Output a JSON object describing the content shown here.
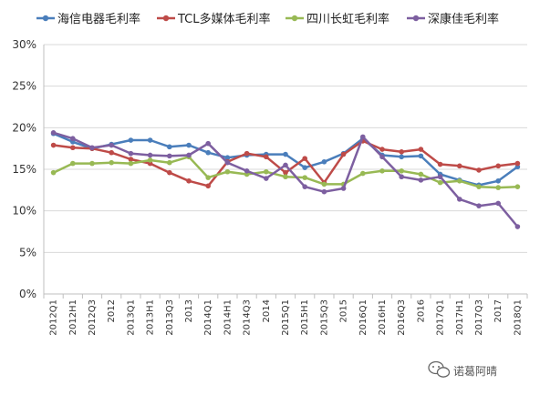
{
  "chart_data": {
    "type": "line",
    "grid": true,
    "legend_position": "top",
    "ylim": [
      0,
      30
    ],
    "y_ticks": [
      0,
      5,
      10,
      15,
      20,
      25,
      30
    ],
    "y_tick_labels": [
      "0%",
      "5%",
      "10%",
      "15%",
      "20%",
      "25%",
      "30%"
    ],
    "categories": [
      "2012Q1",
      "2012H1",
      "2012Q3",
      "2012",
      "2013Q1",
      "2013H1",
      "2013Q3",
      "2013",
      "2014Q1",
      "2014H1",
      "2014Q3",
      "2014",
      "2015Q1",
      "2015H1",
      "2015Q3",
      "2015",
      "2016Q1",
      "2016H1",
      "2016Q3",
      "2016",
      "2017Q1",
      "2017H1",
      "2017Q3",
      "2017",
      "2018Q1"
    ],
    "series": [
      {
        "name": "海信电器毛利率",
        "color": "#4a7ebb",
        "values": [
          19.3,
          18.3,
          17.5,
          18.0,
          18.5,
          18.5,
          17.7,
          17.9,
          17.0,
          16.4,
          16.7,
          16.8,
          16.8,
          15.2,
          15.9,
          16.9,
          18.7,
          16.7,
          16.5,
          16.6,
          14.4,
          13.7,
          13.1,
          13.6,
          15.3
        ]
      },
      {
        "name": "TCL多媒体毛利率",
        "color": "#be4b48",
        "values": [
          17.9,
          17.6,
          17.5,
          17.0,
          16.2,
          15.7,
          14.6,
          13.6,
          13.0,
          15.9,
          16.9,
          16.5,
          14.6,
          16.3,
          13.4,
          16.8,
          18.4,
          17.4,
          17.1,
          17.4,
          15.6,
          15.4,
          14.9,
          15.4,
          15.7
        ]
      },
      {
        "name": "四川长虹毛利率",
        "color": "#98b954",
        "values": [
          14.6,
          15.7,
          15.7,
          15.8,
          15.7,
          16.1,
          15.8,
          16.5,
          14.0,
          14.7,
          14.4,
          14.7,
          14.1,
          14.0,
          13.2,
          13.2,
          14.5,
          14.8,
          14.8,
          14.4,
          13.4,
          13.6,
          12.9,
          12.8,
          12.9
        ]
      },
      {
        "name": "深康佳毛利率",
        "color": "#7d5fa0",
        "values": [
          19.4,
          18.7,
          17.6,
          17.9,
          16.9,
          16.7,
          16.6,
          16.7,
          18.1,
          15.8,
          14.8,
          13.9,
          15.5,
          12.9,
          12.3,
          12.7,
          18.9,
          16.5,
          14.1,
          13.7,
          14.1,
          11.4,
          10.6,
          10.9,
          8.1
        ]
      }
    ]
  },
  "watermark": {
    "text": "诺葛阿晴",
    "icon": "wechat-icon"
  }
}
